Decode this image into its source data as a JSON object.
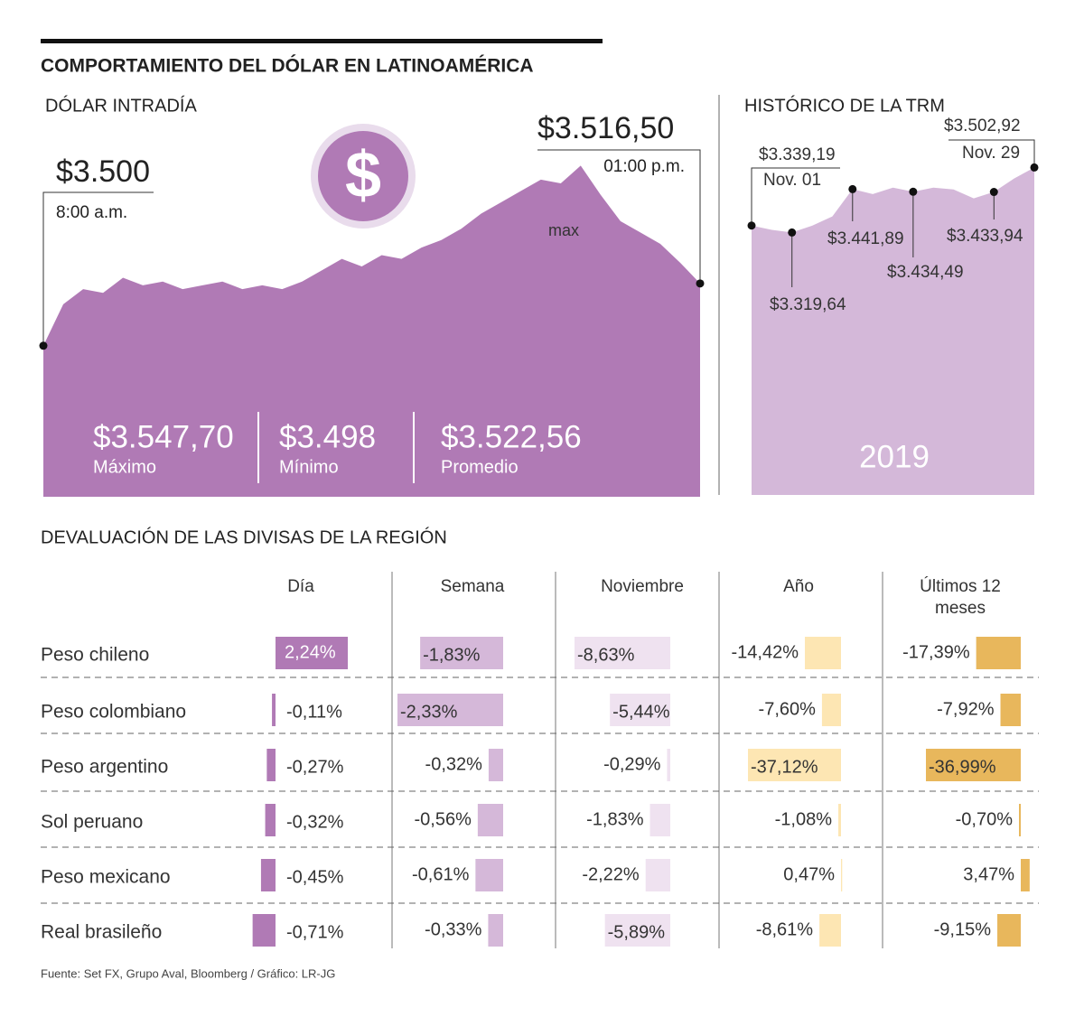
{
  "title": "COMPORTAMIENTO DEL DÓLAR EN LATINOAMÉRICA",
  "chart_data": [
    {
      "type": "area",
      "title": "DÓLAR INTRADÍA",
      "color": "#b07ab5",
      "categories": [
        "8:00 a.m.",
        null,
        null,
        null,
        null,
        null,
        null,
        null,
        null,
        null,
        null,
        null,
        null,
        null,
        null,
        null,
        null,
        null,
        null,
        null,
        null,
        null,
        null,
        null,
        null,
        null,
        null,
        null,
        null,
        null,
        null,
        null,
        null,
        "01:00 p.m."
      ],
      "values": [
        3500,
        3511,
        3515,
        3514,
        3518,
        3516,
        3517,
        3515,
        3516,
        3517,
        3515,
        3516,
        3515,
        3517,
        3520,
        3523,
        3521,
        3524,
        3523,
        3526,
        3528,
        3531,
        3535,
        3538,
        3541,
        3544,
        3543,
        3547.7,
        3540,
        3533,
        3530,
        3527,
        3522,
        3516.5
      ],
      "value_labels": [
        "$3.500",
        null,
        null,
        null,
        null,
        null,
        null,
        null,
        null,
        null,
        null,
        null,
        null,
        null,
        null,
        null,
        null,
        null,
        null,
        null,
        null,
        null,
        null,
        null,
        null,
        null,
        null,
        null,
        null,
        null,
        null,
        null,
        null,
        "$3.516,50"
      ],
      "max_label": "max",
      "ylim": [
        3460,
        3560
      ],
      "stats": [
        {
          "label": "$3.547,70",
          "name": "Máximo"
        },
        {
          "label": "$3.498",
          "name": "Mínimo"
        },
        {
          "label": "$3.522,56",
          "name": "Promedio"
        }
      ]
    },
    {
      "type": "area",
      "title": "HISTÓRICO DE LA TRM",
      "color": "#d4b8d9",
      "year": "2019",
      "categories": [
        "Nov. 01",
        null,
        null,
        null,
        null,
        null,
        null,
        null,
        null,
        null,
        null,
        null,
        null,
        null,
        "Nov. 29"
      ],
      "values": [
        3339.19,
        3327,
        3319.64,
        3339,
        3365,
        3441.89,
        3428,
        3446,
        3434.49,
        3446,
        3441,
        3416,
        3433.94,
        3472,
        3502.92
      ],
      "value_labels": [
        "$3.339,19",
        null,
        "$3.319,64",
        null,
        null,
        "$3.441,89",
        null,
        null,
        "$3.434,49",
        null,
        null,
        null,
        "$3.433,94",
        null,
        "$3.502,92"
      ],
      "ylim": [
        2580,
        3560
      ]
    },
    {
      "type": "bar-table",
      "title": "DEVALUACIÓN DE LAS DIVISAS DE LA REGIÓN",
      "categories": [
        "Peso chileno",
        "Peso colombiano",
        "Peso argentino",
        "Sol peruano",
        "Peso mexicano",
        "Real brasileño"
      ],
      "series": [
        {
          "name": "Día",
          "color": "#b07ab5",
          "values": [
            2.24,
            -0.11,
            -0.27,
            -0.32,
            -0.45,
            -0.71
          ],
          "value_labels": [
            "2,24%",
            "-0,11%",
            "-0,27%",
            "-0,32%",
            "-0,45%",
            "-0,71%"
          ]
        },
        {
          "name": "Semana",
          "color": "#d5b8d9",
          "values": [
            -1.83,
            -2.33,
            -0.32,
            -0.56,
            -0.61,
            -0.33
          ],
          "value_labels": [
            "-1,83%",
            "-2,33%",
            "-0,32%",
            "-0,56%",
            "-0,61%",
            "-0,33%"
          ]
        },
        {
          "name": "Noviembre",
          "color": "#efe2f0",
          "values": [
            -8.63,
            -5.44,
            -0.29,
            -1.83,
            -2.22,
            -5.89
          ],
          "value_labels": [
            "-8,63%",
            "-5,44%",
            "-0,29%",
            "-1,83%",
            "-2,22%",
            "-5,89%"
          ]
        },
        {
          "name": "Año",
          "color": "#fde6b3",
          "values": [
            -14.42,
            -7.6,
            -37.12,
            -1.08,
            0.47,
            -8.61
          ],
          "value_labels": [
            "-14,42%",
            "-7,60%",
            "-37,12%",
            "-1,08%",
            "0,47%",
            "-8,61%"
          ]
        },
        {
          "name": "Últimos 12 meses",
          "color": "#e8b75c",
          "values": [
            -17.39,
            -7.92,
            -36.99,
            -0.7,
            3.47,
            -9.15
          ],
          "value_labels": [
            "-17,39%",
            "-7,92%",
            "-36,99%",
            "-0,70%",
            "3,47%",
            "-9,15%"
          ]
        }
      ]
    }
  ],
  "source": "Fuente: Set FX, Grupo Aval, Bloomberg / Gráfico: LR-JG"
}
